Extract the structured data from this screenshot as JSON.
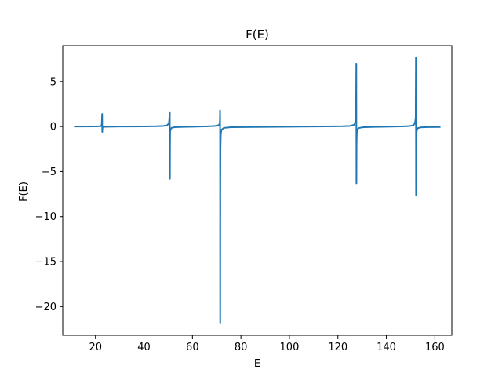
{
  "chart_data": {
    "type": "line",
    "title": "F(E)",
    "xlabel": "E",
    "ylabel": "F(E)",
    "xlim": [
      6.5,
      167
    ],
    "ylim": [
      -23.2,
      9.0
    ],
    "xticks": [
      20,
      40,
      60,
      80,
      100,
      120,
      140,
      160
    ],
    "yticks": [
      5,
      0,
      -5,
      -10,
      -15,
      -20
    ],
    "grid": false,
    "series": [
      {
        "color": "#1f77b4",
        "x": [
          11.5,
          20,
          22.0,
          22.4,
          22.6,
          22.75,
          22.8,
          22.85,
          22.9,
          23.0,
          23.2,
          25,
          30,
          40,
          45,
          48,
          49.5,
          50.3,
          50.65,
          50.7,
          50.75,
          50.8,
          51.0,
          51.4,
          52.5,
          56,
          60,
          65,
          68,
          70,
          71.0,
          71.3,
          71.4,
          71.45,
          71.5,
          71.55,
          71.7,
          72.0,
          73,
          76,
          85,
          100,
          115,
          122,
          125,
          126.8,
          127.3,
          127.5,
          127.6,
          127.65,
          127.7,
          127.8,
          128.0,
          128.5,
          130,
          135,
          140,
          146,
          149,
          151.0,
          151.8,
          152.1,
          152.2,
          152.25,
          152.3,
          152.4,
          152.6,
          153.0,
          154,
          157,
          162
        ],
        "y": [
          0.0,
          0.01,
          0.03,
          0.08,
          0.25,
          1.4,
          -0.6,
          -0.3,
          -0.12,
          -0.06,
          -0.03,
          -0.02,
          0.0,
          0.01,
          0.03,
          0.07,
          0.13,
          0.35,
          1.6,
          -5.8,
          -1.8,
          -0.6,
          -0.3,
          -0.15,
          -0.08,
          -0.04,
          -0.02,
          0.01,
          0.04,
          0.08,
          0.18,
          0.4,
          1.8,
          -21.8,
          -6.0,
          -2.5,
          -0.8,
          -0.35,
          -0.15,
          -0.08,
          -0.05,
          -0.02,
          0.01,
          0.03,
          0.07,
          0.2,
          0.6,
          2.0,
          7.0,
          -6.3,
          -2.0,
          -0.7,
          -0.35,
          -0.18,
          -0.09,
          -0.04,
          -0.02,
          0.01,
          0.04,
          0.12,
          0.35,
          1.0,
          7.7,
          -7.6,
          -2.5,
          -0.8,
          -0.35,
          -0.18,
          -0.1,
          -0.06,
          -0.05
        ]
      }
    ]
  }
}
